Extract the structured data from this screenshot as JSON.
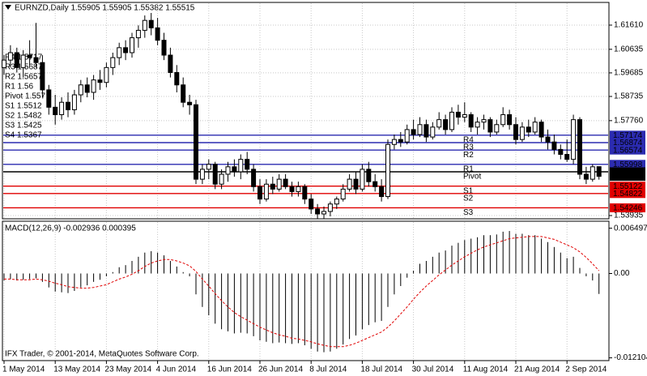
{
  "chart_data": [
    {
      "type": "candlestick",
      "title": "EURNZD,Daily  1.55905 1.55905 1.55382 1.55515",
      "categories": [
        "1 May 2014",
        null,
        null,
        null,
        null,
        null,
        null,
        null,
        "13 May 2014",
        null,
        null,
        null,
        null,
        null,
        null,
        null,
        "23 May 2014",
        null,
        null,
        null,
        null,
        null,
        null,
        null,
        "4 Jun 2014",
        null,
        null,
        null,
        null,
        null,
        null,
        null,
        "16 Jun 2014",
        null,
        null,
        null,
        null,
        null,
        null,
        null,
        "26 Jun 2014",
        null,
        null,
        null,
        null,
        null,
        null,
        null,
        "8 Jul 2014",
        null,
        null,
        null,
        null,
        null,
        null,
        null,
        "18 Jul 2014",
        null,
        null,
        null,
        null,
        null,
        null,
        null,
        "30 Jul 2014",
        null,
        null,
        null,
        null,
        null,
        null,
        null,
        "11 Aug 2014",
        null,
        null,
        null,
        null,
        null,
        null,
        null,
        "21 Aug 2014",
        null,
        null,
        null,
        null,
        null,
        null,
        null,
        "2 Sep 2014",
        null,
        null,
        null,
        null,
        null
      ],
      "open": [
        1.599,
        1.602,
        1.605,
        1.599,
        1.604,
        1.603,
        1.601,
        1.59,
        1.583,
        1.58,
        1.585,
        1.582,
        1.588,
        1.592,
        1.589,
        1.594,
        1.593,
        1.599,
        1.603,
        1.607,
        1.605,
        1.611,
        1.614,
        1.618,
        1.615,
        1.61,
        1.604,
        1.597,
        1.592,
        1.585,
        1.584,
        1.554,
        1.558,
        1.56,
        1.552,
        1.556,
        1.559,
        1.557,
        1.562,
        1.558,
        1.551,
        1.546,
        1.552,
        1.55,
        1.554,
        1.551,
        1.549,
        1.551,
        1.546,
        1.542,
        1.54,
        1.541,
        1.544,
        1.546,
        1.55,
        1.554,
        1.55,
        1.558,
        1.553,
        1.551,
        1.547,
        1.568,
        1.57,
        1.569,
        1.574,
        1.572,
        1.576,
        1.571,
        1.575,
        1.578,
        1.574,
        1.581,
        1.579,
        1.58,
        1.575,
        1.577,
        1.578,
        1.573,
        1.576,
        1.58,
        1.576,
        1.57,
        1.575,
        1.573,
        1.577,
        1.571,
        1.569,
        1.566,
        1.564,
        1.562,
        1.578,
        1.556,
        1.554,
        1.55905
      ],
      "high": [
        1.604,
        1.608,
        1.607,
        1.606,
        1.61,
        1.617,
        1.604,
        1.592,
        1.588,
        1.587,
        1.589,
        1.59,
        1.594,
        1.595,
        1.596,
        1.598,
        1.601,
        1.605,
        1.609,
        1.61,
        1.613,
        1.616,
        1.62,
        1.621,
        1.619,
        1.613,
        1.607,
        1.6,
        1.595,
        1.588,
        1.586,
        1.56,
        1.562,
        1.561,
        1.558,
        1.561,
        1.562,
        1.564,
        1.565,
        1.56,
        1.554,
        1.554,
        1.555,
        1.556,
        1.556,
        1.553,
        1.553,
        1.552,
        1.548,
        1.544,
        1.543,
        1.545,
        1.547,
        1.552,
        1.556,
        1.557,
        1.56,
        1.561,
        1.556,
        1.554,
        1.57,
        1.572,
        1.573,
        1.576,
        1.578,
        1.579,
        1.578,
        1.577,
        1.581,
        1.58,
        1.583,
        1.584,
        1.585,
        1.581,
        1.579,
        1.58,
        1.579,
        1.578,
        1.583,
        1.582,
        1.579,
        1.577,
        1.578,
        1.579,
        1.578,
        1.574,
        1.572,
        1.568,
        1.57,
        1.58,
        1.579,
        1.559,
        1.56,
        1.55905
      ],
      "low": [
        1.596,
        1.599,
        1.597,
        1.595,
        1.6,
        1.599,
        1.587,
        1.58,
        1.576,
        1.578,
        1.579,
        1.58,
        1.585,
        1.587,
        1.586,
        1.59,
        1.591,
        1.596,
        1.6,
        1.602,
        1.603,
        1.607,
        1.611,
        1.612,
        1.608,
        1.602,
        1.595,
        1.589,
        1.583,
        1.58,
        1.552,
        1.552,
        1.554,
        1.55,
        1.55,
        1.553,
        1.555,
        1.554,
        1.556,
        1.549,
        1.544,
        1.545,
        1.548,
        1.549,
        1.55,
        1.547,
        1.547,
        1.544,
        1.54,
        1.538,
        1.538,
        1.539,
        1.542,
        1.545,
        1.549,
        1.548,
        1.549,
        1.551,
        1.549,
        1.545,
        1.546,
        1.566,
        1.567,
        1.568,
        1.57,
        1.571,
        1.569,
        1.57,
        1.574,
        1.572,
        1.573,
        1.576,
        1.577,
        1.573,
        1.572,
        1.574,
        1.571,
        1.572,
        1.575,
        1.574,
        1.568,
        1.569,
        1.571,
        1.572,
        1.569,
        1.566,
        1.564,
        1.562,
        1.561,
        1.56,
        1.554,
        1.552,
        1.553,
        1.55382
      ],
      "close": [
        1.602,
        1.605,
        1.599,
        1.604,
        1.603,
        1.601,
        1.59,
        1.583,
        1.58,
        1.585,
        1.582,
        1.588,
        1.592,
        1.589,
        1.594,
        1.593,
        1.599,
        1.603,
        1.607,
        1.605,
        1.611,
        1.614,
        1.618,
        1.615,
        1.61,
        1.604,
        1.597,
        1.592,
        1.585,
        1.584,
        1.554,
        1.558,
        1.56,
        1.552,
        1.556,
        1.559,
        1.557,
        1.562,
        1.558,
        1.551,
        1.546,
        1.552,
        1.55,
        1.554,
        1.551,
        1.549,
        1.551,
        1.546,
        1.542,
        1.54,
        1.541,
        1.544,
        1.546,
        1.55,
        1.554,
        1.55,
        1.558,
        1.553,
        1.551,
        1.547,
        1.568,
        1.57,
        1.569,
        1.574,
        1.572,
        1.576,
        1.571,
        1.575,
        1.578,
        1.574,
        1.581,
        1.579,
        1.58,
        1.575,
        1.577,
        1.578,
        1.573,
        1.576,
        1.58,
        1.576,
        1.57,
        1.575,
        1.573,
        1.577,
        1.571,
        1.569,
        1.566,
        1.564,
        1.562,
        1.578,
        1.556,
        1.554,
        1.559,
        1.55515
      ],
      "up_color": "#ffffff",
      "down_color": "#000000",
      "ylim": [
        1.53804,
        1.62524
      ],
      "yticks": [
        {
          "value": 1.6161,
          "label": "1.61610"
        },
        1.60635,
        1.59685,
        1.58735,
        {
          "value": 1.5776,
          "label": "1.57760"
        },
        1.53935
      ],
      "grid": true,
      "levels": [
        {
          "name": "R4",
          "value": 1.57174,
          "color": "#2b2bb0"
        },
        {
          "name": "R3",
          "value": 1.56874,
          "color": "#2b2bb0"
        },
        {
          "name": "R2",
          "value": 1.56574,
          "color": "#2b2bb0"
        },
        {
          "name": "R1",
          "value": 1.55998,
          "color": "#2b2bb0"
        },
        {
          "name": "Pivot",
          "value": 1.55698,
          "color": "#000000"
        },
        {
          "name": "S1",
          "value": 1.55122,
          "color": "#e00000"
        },
        {
          "name": "S2",
          "value": 1.54822,
          "color": "#e00000"
        },
        {
          "name": "S3",
          "value": 1.54246,
          "color": "#e00000"
        }
      ],
      "level_label_color": "#c80000",
      "last_price": 1.55515,
      "notes": [
        "R4 1.5717",
        "R3 1.5687",
        "R2 1.5657",
        "R1 1.56",
        "Pivot 1.557",
        "S1 1.5512",
        "S2 1.5482",
        "S3 1.5425",
        "S4 1.5367"
      ]
    },
    {
      "type": "macd",
      "title": "MACD(12,26,9) -0.002936 0.000395",
      "annotation": "IFX Trader, © 2001-2014, MetaQuotes Software Corp.",
      "ylim": [
        -0.0125,
        0.0075
      ],
      "yticks": [
        0.006497,
        {
          "value": 0,
          "label": "0.00"
        },
        -0.012104
      ],
      "series": [
        {
          "color": "#000000",
          "values": [
            -0.001,
            -0.0008,
            -0.001,
            -0.0009,
            -0.0008,
            -0.0007,
            -0.0012,
            -0.002,
            -0.0026,
            -0.0027,
            -0.0028,
            -0.0025,
            -0.002,
            -0.0017,
            -0.0012,
            -0.0009,
            -0.0004,
            0.0002,
            0.0009,
            0.0012,
            0.0018,
            0.0024,
            0.003,
            0.0032,
            0.003,
            0.0026,
            0.0018,
            0.001,
            0.0002,
            -0.0004,
            -0.003,
            -0.0048,
            -0.006,
            -0.0072,
            -0.008,
            -0.0083,
            -0.0086,
            -0.0085,
            -0.0086,
            -0.009,
            -0.0096,
            -0.0098,
            -0.01,
            -0.0099,
            -0.01,
            -0.0101,
            -0.01,
            -0.0103,
            -0.0108,
            -0.0112,
            -0.0113,
            -0.0112,
            -0.0108,
            -0.0102,
            -0.0094,
            -0.0089,
            -0.008,
            -0.0074,
            -0.007,
            -0.0068,
            -0.0048,
            -0.003,
            -0.0018,
            -0.0006,
            0.0004,
            0.0014,
            0.0018,
            0.0024,
            0.003,
            0.0033,
            0.004,
            0.0044,
            0.0048,
            0.005,
            0.0052,
            0.0055,
            0.0055,
            0.0056,
            0.006,
            0.0061,
            0.0057,
            0.0057,
            0.0055,
            0.0055,
            0.005,
            0.0045,
            0.0038,
            0.003,
            0.0022,
            0.0024,
            0.0008,
            -0.0004,
            -0.001,
            -0.002936
          ]
        },
        {
          "color": "#e00000",
          "dashed": true,
          "values": [
            -0.0008,
            -0.0008,
            -0.0009,
            -0.0009,
            -0.0009,
            -0.0008,
            -0.0009,
            -0.0011,
            -0.0014,
            -0.0016,
            -0.0019,
            -0.002,
            -0.0021,
            -0.0021,
            -0.002,
            -0.0018,
            -0.0016,
            -0.0012,
            -0.0008,
            -0.0005,
            -0.0001,
            0.0004,
            0.001,
            0.0015,
            0.0018,
            0.002,
            0.002,
            0.0018,
            0.0015,
            0.0011,
            0.0003,
            -0.0008,
            -0.0018,
            -0.0029,
            -0.0039,
            -0.0048,
            -0.0056,
            -0.0062,
            -0.0067,
            -0.0072,
            -0.0077,
            -0.0081,
            -0.0085,
            -0.0088,
            -0.009,
            -0.0093,
            -0.0094,
            -0.0096,
            -0.0098,
            -0.0101,
            -0.0103,
            -0.0105,
            -0.0105,
            -0.0105,
            -0.0103,
            -0.01,
            -0.0096,
            -0.0092,
            -0.0088,
            -0.0084,
            -0.0077,
            -0.0068,
            -0.0058,
            -0.0048,
            -0.0037,
            -0.0027,
            -0.0018,
            -0.001,
            -0.0002,
            0.0005,
            0.0012,
            0.0018,
            0.0024,
            0.0029,
            0.0034,
            0.0038,
            0.0041,
            0.0044,
            0.0047,
            0.005,
            0.0051,
            0.0052,
            0.0053,
            0.0053,
            0.0053,
            0.0051,
            0.0049,
            0.0045,
            0.0041,
            0.0037,
            0.0031,
            0.0023,
            0.0014,
            0.000395
          ]
        }
      ]
    }
  ]
}
